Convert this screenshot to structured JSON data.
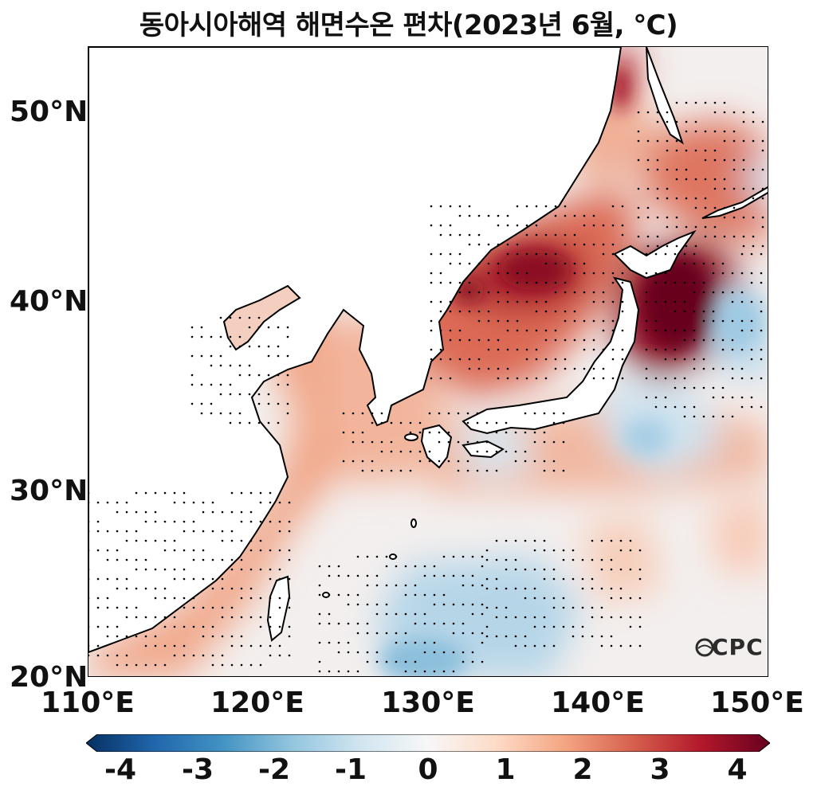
{
  "title": "동아시아해역 해면수온 편차(2023년 6월, ℃)",
  "map": {
    "lon_range": [
      110,
      150
    ],
    "lat_range": [
      20,
      53.5
    ],
    "y_ticks": [
      {
        "label": "50°N",
        "lat": 50
      },
      {
        "label": "40°N",
        "lat": 40
      },
      {
        "label": "30°N",
        "lat": 30
      },
      {
        "label": "20°N",
        "lat": 20
      }
    ],
    "x_ticks": [
      {
        "label": "110°E",
        "lon": 110
      },
      {
        "label": "120°E",
        "lon": 120
      },
      {
        "label": "130°E",
        "lon": 130
      },
      {
        "label": "140°E",
        "lon": 140
      },
      {
        "label": "150°E",
        "lon": 150
      }
    ],
    "logo": "CPC"
  },
  "colorbar": {
    "min": -4,
    "max": 4,
    "ticks": [
      "-4",
      "-3",
      "-2",
      "-1",
      "0",
      "1",
      "2",
      "3",
      "4"
    ],
    "colors": [
      "#053061",
      "#2166ac",
      "#4393c3",
      "#92c5de",
      "#d1e5f0",
      "#f7f7f7",
      "#fddbc7",
      "#f4a582",
      "#d6604d",
      "#b2182b",
      "#67001f"
    ]
  }
}
